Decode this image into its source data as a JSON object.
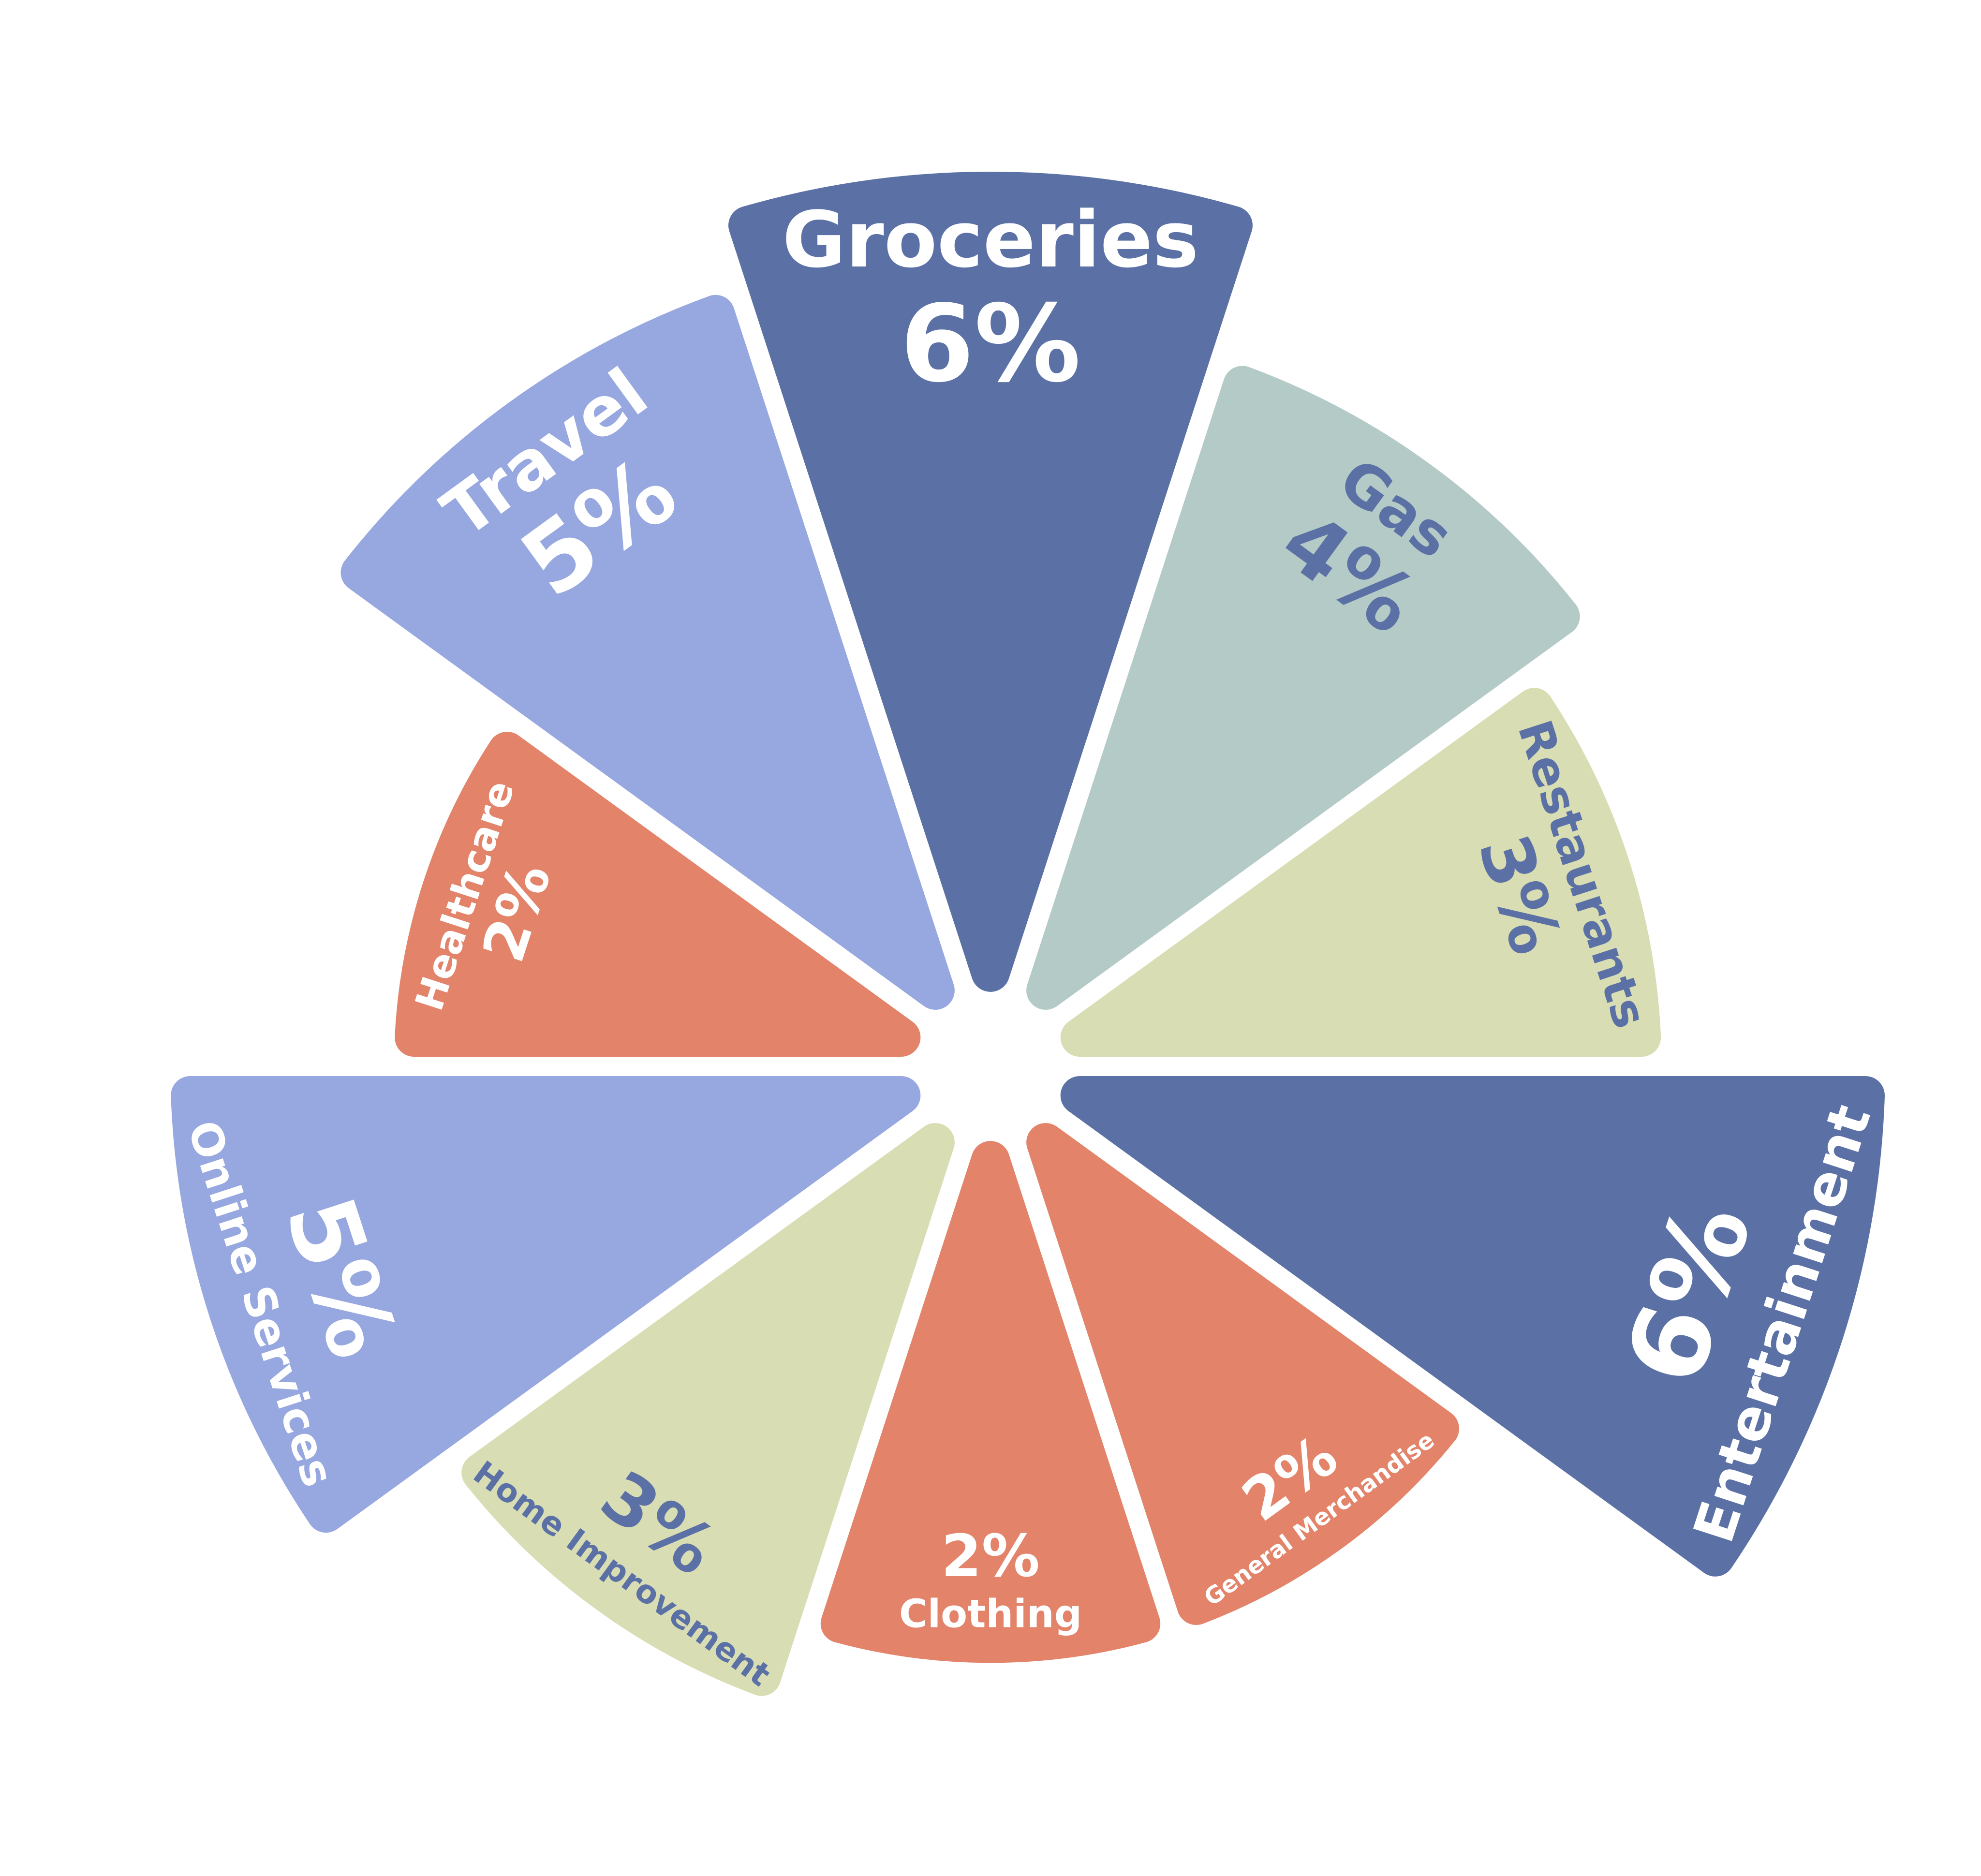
{
  "chart_data": {
    "type": "rose",
    "categories": [
      "Groceries",
      "Gas",
      "Restaurants",
      "Entertainment",
      "General Merchandise",
      "Clothing",
      "Home Improvement",
      "Online Services",
      "Healthcare",
      "Travel"
    ],
    "values": [
      6,
      4,
      3,
      6,
      2,
      2,
      3,
      5,
      2,
      5
    ],
    "value_labels": [
      "6%",
      "4%",
      "3%",
      "6%",
      "2%",
      "2%",
      "3%",
      "5%",
      "2%",
      "5%"
    ],
    "colors": [
      "#5b71a5",
      "#b4cac6",
      "#d9ddb4",
      "#5b71a5",
      "#e2836a",
      "#e2836a",
      "#d9ddb4",
      "#97a7df",
      "#e2836a",
      "#97a7df"
    ],
    "label_colors": [
      "#ffffff",
      "#5b71a5",
      "#5b71a5",
      "#ffffff",
      "#ffffff",
      "#ffffff",
      "#5b71a5",
      "#ffffff",
      "#ffffff",
      "#ffffff"
    ]
  }
}
